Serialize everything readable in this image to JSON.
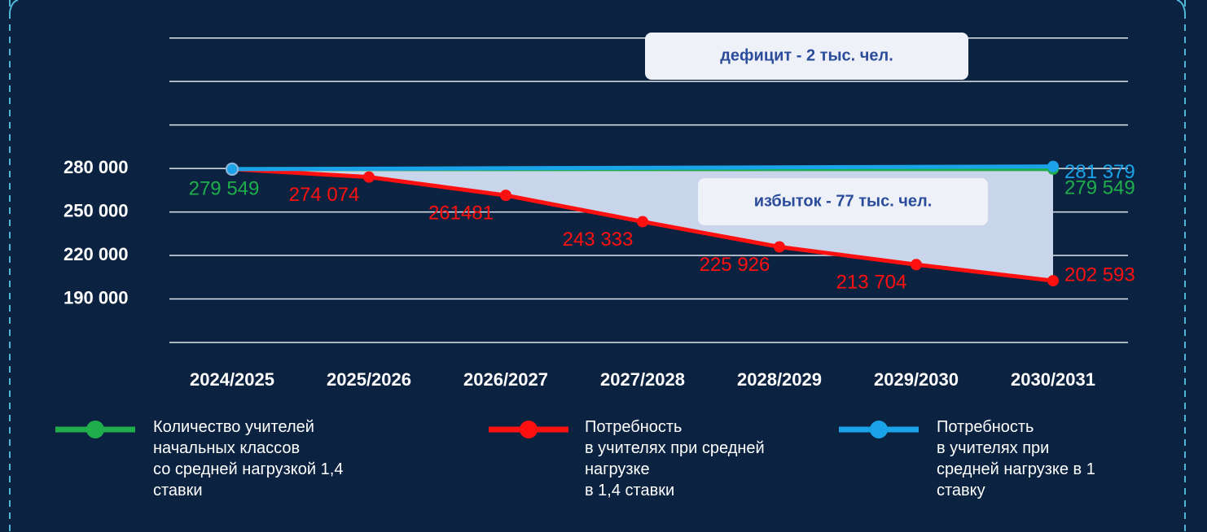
{
  "chart_data": {
    "type": "line",
    "categories": [
      "2024/2025",
      "2025/2026",
      "2026/2027",
      "2027/2028",
      "2028/2029",
      "2029/2030",
      "2030/2031"
    ],
    "series": [
      {
        "name": "Количество учителей\nначальных классов\nсо средней нагрузкой 1,4\nставки",
        "color": "#1fae4b",
        "x": [
          "2024/2025",
          "2030/2031"
        ],
        "values": [
          279549,
          279549
        ],
        "value_labels": [
          "279 549",
          "279 549"
        ]
      },
      {
        "name": "Потребность\nв учителях при средней\nнагрузке\nв 1,4 ставки",
        "color": "#ff1010",
        "values": [
          279549,
          274074,
          261481,
          243333,
          225926,
          213704,
          202593
        ],
        "value_labels": [
          null,
          "274 074",
          "261481",
          "243 333",
          "225 926",
          "213 704",
          "202 593"
        ]
      },
      {
        "name": "Потребность\nв учителях при\nсредней нагрузке в 1\nставку",
        "color": "#1aa3e8",
        "x": [
          "2024/2025",
          "2030/2031"
        ],
        "values": [
          279549,
          281379
        ],
        "value_labels": [
          null,
          "281 379"
        ]
      }
    ],
    "ylim": [
      160000,
      376000
    ],
    "yticks": [
      {
        "value": 190000,
        "label": "190 000"
      },
      {
        "value": 220000,
        "label": "220 000"
      },
      {
        "value": 250000,
        "label": "250 000"
      },
      {
        "value": 280000,
        "label": "280 000"
      }
    ],
    "grid_values": [
      160000,
      190000,
      220000,
      250000,
      280000,
      310000,
      340000,
      370000
    ],
    "annotations": [
      "дефицит - 2 тыс. чел.",
      "избыток  -  77 тыс. чел."
    ],
    "area_colors": [
      "#c3e59b",
      "#c9d5ea"
    ]
  }
}
